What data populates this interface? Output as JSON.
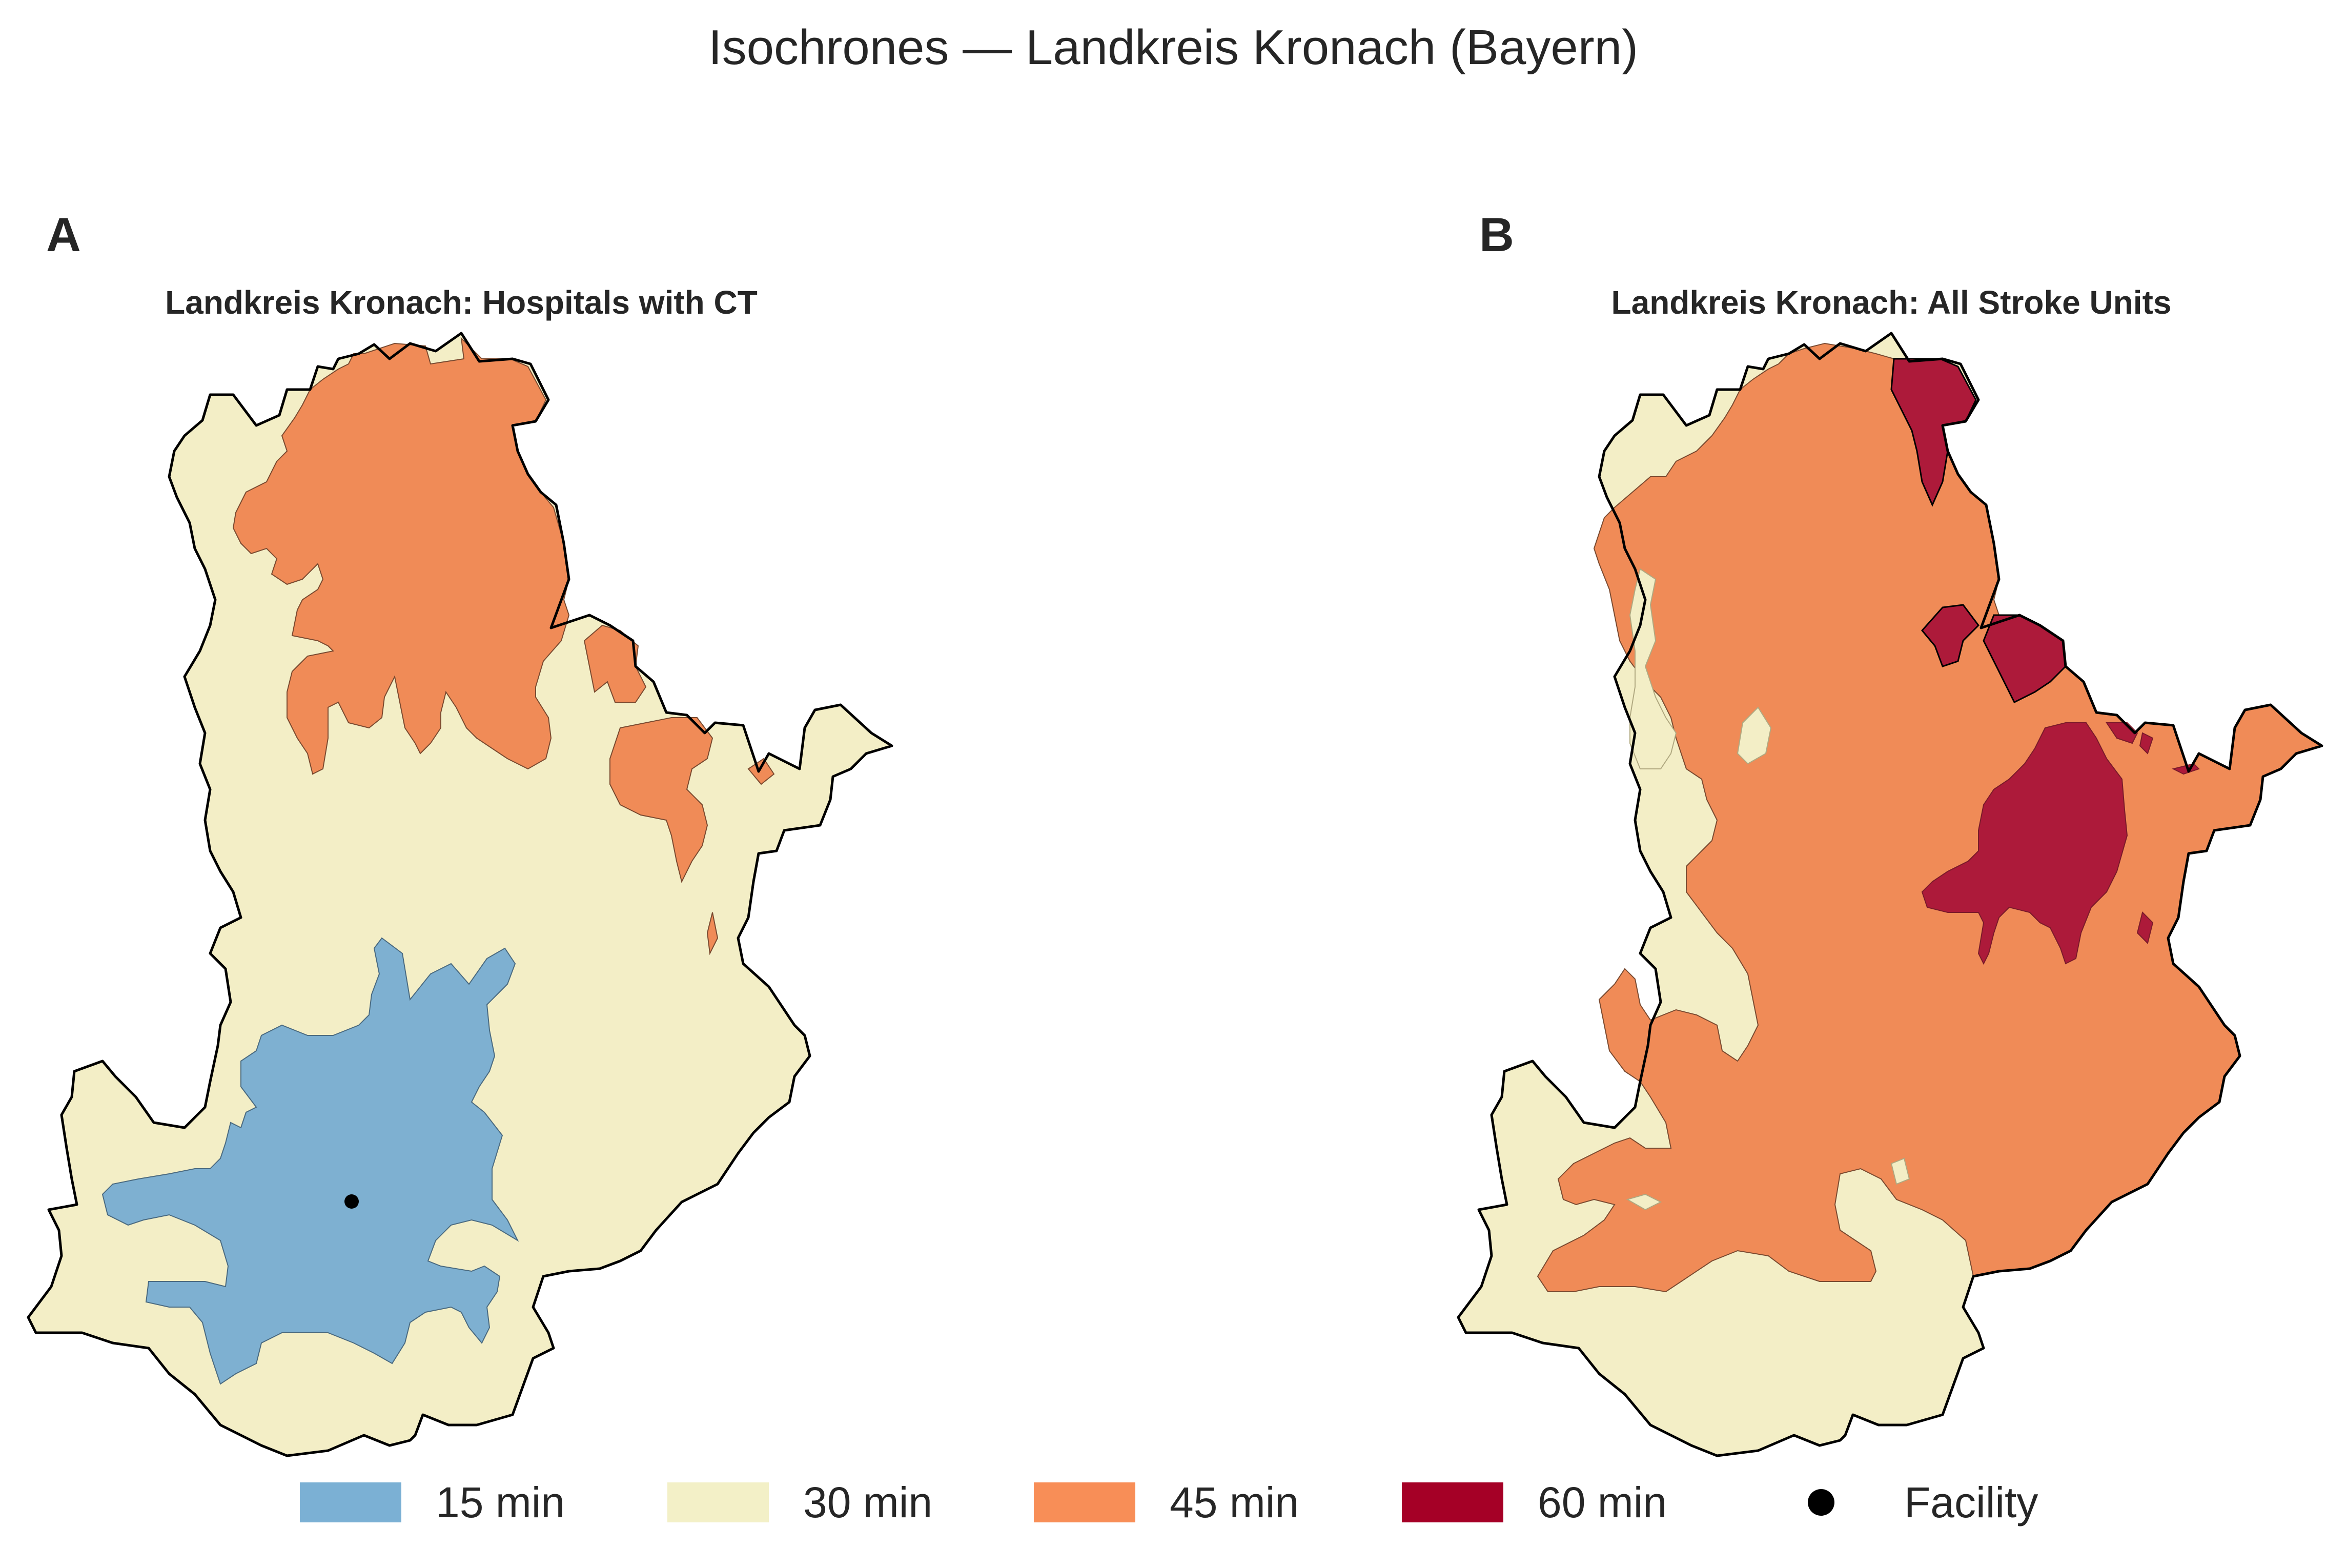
{
  "figure": {
    "title": "Isochrones — Landkreis Kronach (Bayern)"
  },
  "panels": [
    {
      "letter": "A",
      "title": "Landkreis Kronach: Hospitals with CT",
      "zones_visible": [
        "15 min",
        "30 min",
        "45 min"
      ],
      "facility_shown": true
    },
    {
      "letter": "B",
      "title": "Landkreis Kronach: All Stroke Units",
      "zones_visible": [
        "30 min",
        "45 min",
        "60 min"
      ],
      "facility_shown": false
    }
  ],
  "legend": {
    "items": [
      {
        "label": "15 min",
        "color": "#7bb0d4",
        "icon": "swatch"
      },
      {
        "label": "30 min",
        "color": "#f3f0c7",
        "icon": "swatch"
      },
      {
        "label": "45 min",
        "color": "#f88e57",
        "icon": "swatch"
      },
      {
        "label": "60 min",
        "color": "#a50026",
        "icon": "swatch"
      },
      {
        "label": "Facility",
        "color": "#000000",
        "icon": "dot"
      }
    ]
  },
  "colors": {
    "zone_15": "#7eb0d1",
    "zone_30": "#f3eec6",
    "zone_45": "#f08b57",
    "zone_60": "#ad1a3a",
    "outline": "#000000"
  }
}
